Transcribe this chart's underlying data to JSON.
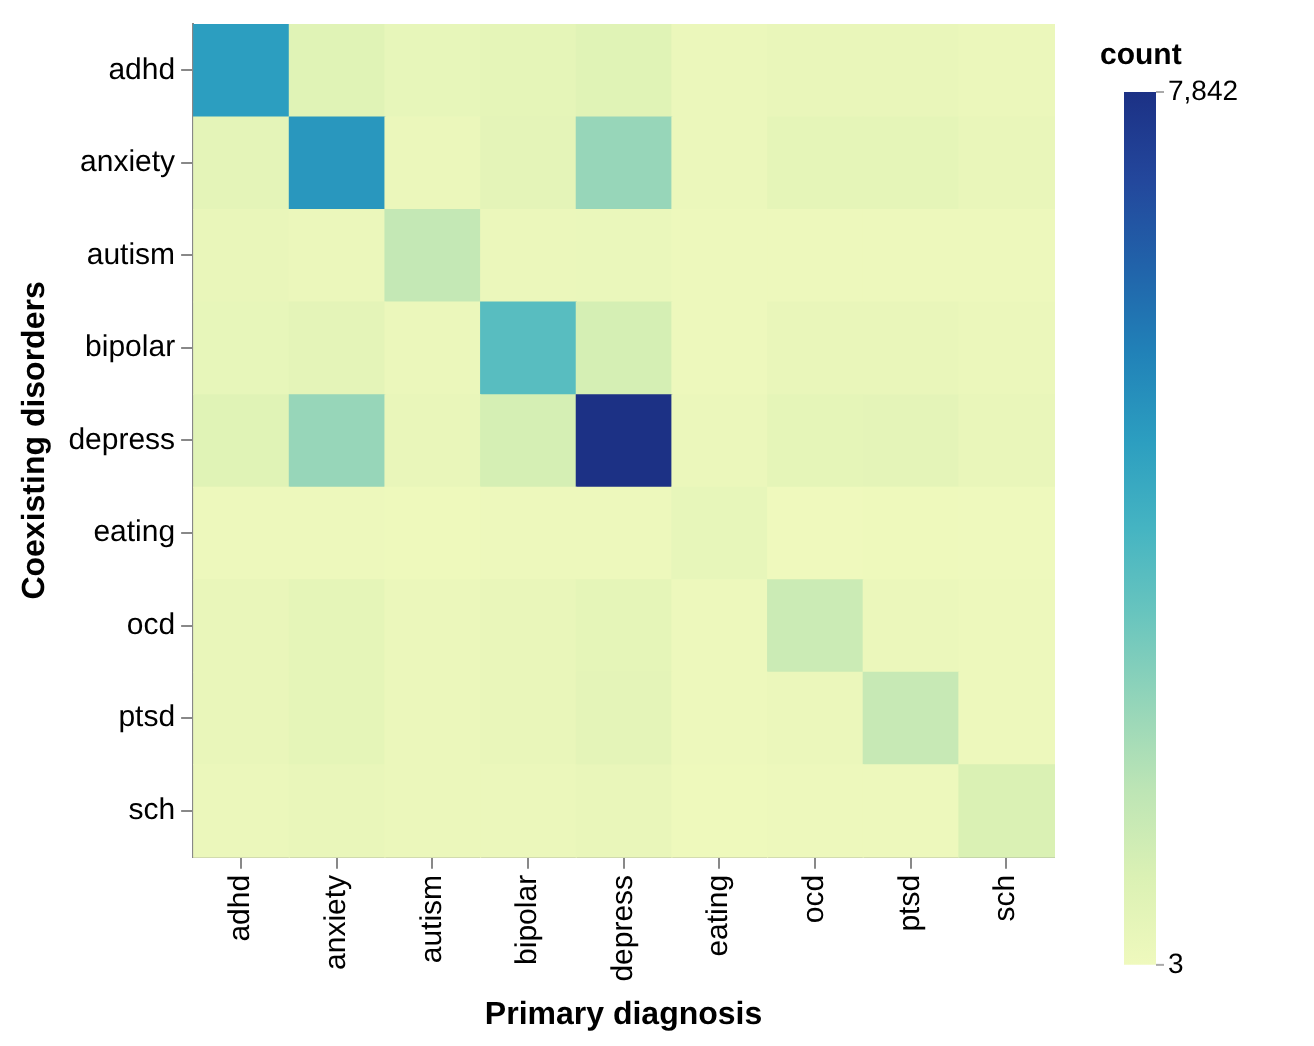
{
  "chart_data": {
    "type": "heatmap",
    "xlabel": "Primary diagnosis",
    "ylabel": "Coexisting disorders",
    "clabel": "count",
    "categories": [
      "adhd",
      "anxiety",
      "autism",
      "bipolar",
      "depress",
      "eating",
      "ocd",
      "ptsd",
      "sch"
    ],
    "y_categories": [
      "adhd",
      "anxiety",
      "autism",
      "bipolar",
      "depress",
      "eating",
      "ocd",
      "ptsd",
      "sch"
    ],
    "cells": [
      [
        4700,
        600,
        300,
        400,
        600,
        150,
        250,
        250,
        150
      ],
      [
        450,
        4900,
        150,
        450,
        2300,
        150,
        400,
        400,
        250
      ],
      [
        250,
        150,
        1400,
        150,
        200,
        100,
        100,
        100,
        100
      ],
      [
        300,
        450,
        150,
        3500,
        950,
        80,
        250,
        250,
        150
      ],
      [
        600,
        2300,
        250,
        950,
        7842,
        150,
        400,
        450,
        250
      ],
      [
        80,
        80,
        50,
        80,
        100,
        300,
        3,
        50,
        30
      ],
      [
        250,
        400,
        150,
        250,
        400,
        80,
        1200,
        150,
        80
      ],
      [
        250,
        400,
        150,
        250,
        450,
        80,
        150,
        1300,
        80
      ],
      [
        150,
        250,
        150,
        150,
        250,
        50,
        80,
        80,
        800
      ]
    ],
    "clim": [
      3,
      7842
    ],
    "cticks": [
      3,
      {
        "value": 7842,
        "label": "7,842"
      }
    ]
  }
}
